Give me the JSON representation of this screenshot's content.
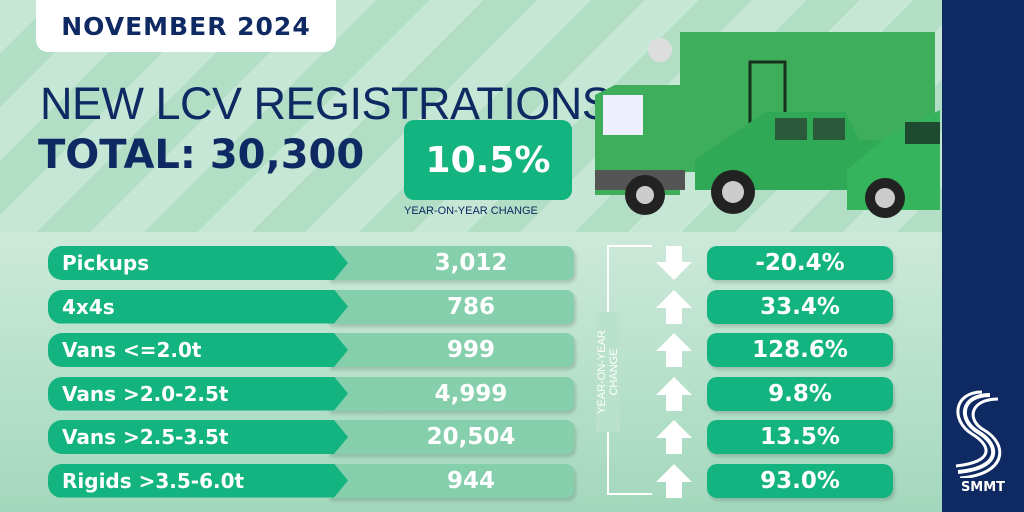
{
  "header": {
    "month": "NOVEMBER 2024",
    "title": "NEW LCV REGISTRATIONS",
    "total": "TOTAL: 30,300",
    "yoy_value": "10.5%",
    "yoy_caption": "YEAR-ON-YEAR CHANGE"
  },
  "table": {
    "yoy_axis_label": "YEAR-ON-YEAR CHANGE",
    "rows": [
      {
        "label": "Pickups",
        "value": "3,012",
        "change": "-20.4%",
        "direction": "down"
      },
      {
        "label": "4x4s",
        "value": "786",
        "change": "33.4%",
        "direction": "up"
      },
      {
        "label": "Vans <=2.0t",
        "value": "999",
        "change": "128.6%",
        "direction": "up"
      },
      {
        "label": "Vans >2.0-2.5t",
        "value": "4,999",
        "change": "9.8%",
        "direction": "up"
      },
      {
        "label": "Vans >2.5-3.5t",
        "value": "20,504",
        "change": "13.5%",
        "direction": "up"
      },
      {
        "label": "Rigids >3.5-6.0t",
        "value": "944",
        "change": "93.0%",
        "direction": "up"
      }
    ]
  },
  "brand": {
    "name": "SMMT"
  },
  "colors": {
    "navy": "#0f2a63",
    "green": "#13b47f",
    "pale_green": "#86cfad"
  }
}
